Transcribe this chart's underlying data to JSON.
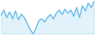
{
  "values": [
    60,
    72,
    55,
    68,
    52,
    70,
    50,
    63,
    55,
    42,
    28,
    18,
    30,
    48,
    52,
    45,
    55,
    62,
    52,
    65,
    72,
    62,
    74,
    65,
    72,
    58,
    78,
    55,
    82,
    70,
    88,
    78,
    92
  ],
  "line_color": "#5bb8e8",
  "fill_color": "#5bb8e8",
  "fill_alpha": 0.18,
  "background_color": "#ffffff",
  "linewidth": 0.9
}
